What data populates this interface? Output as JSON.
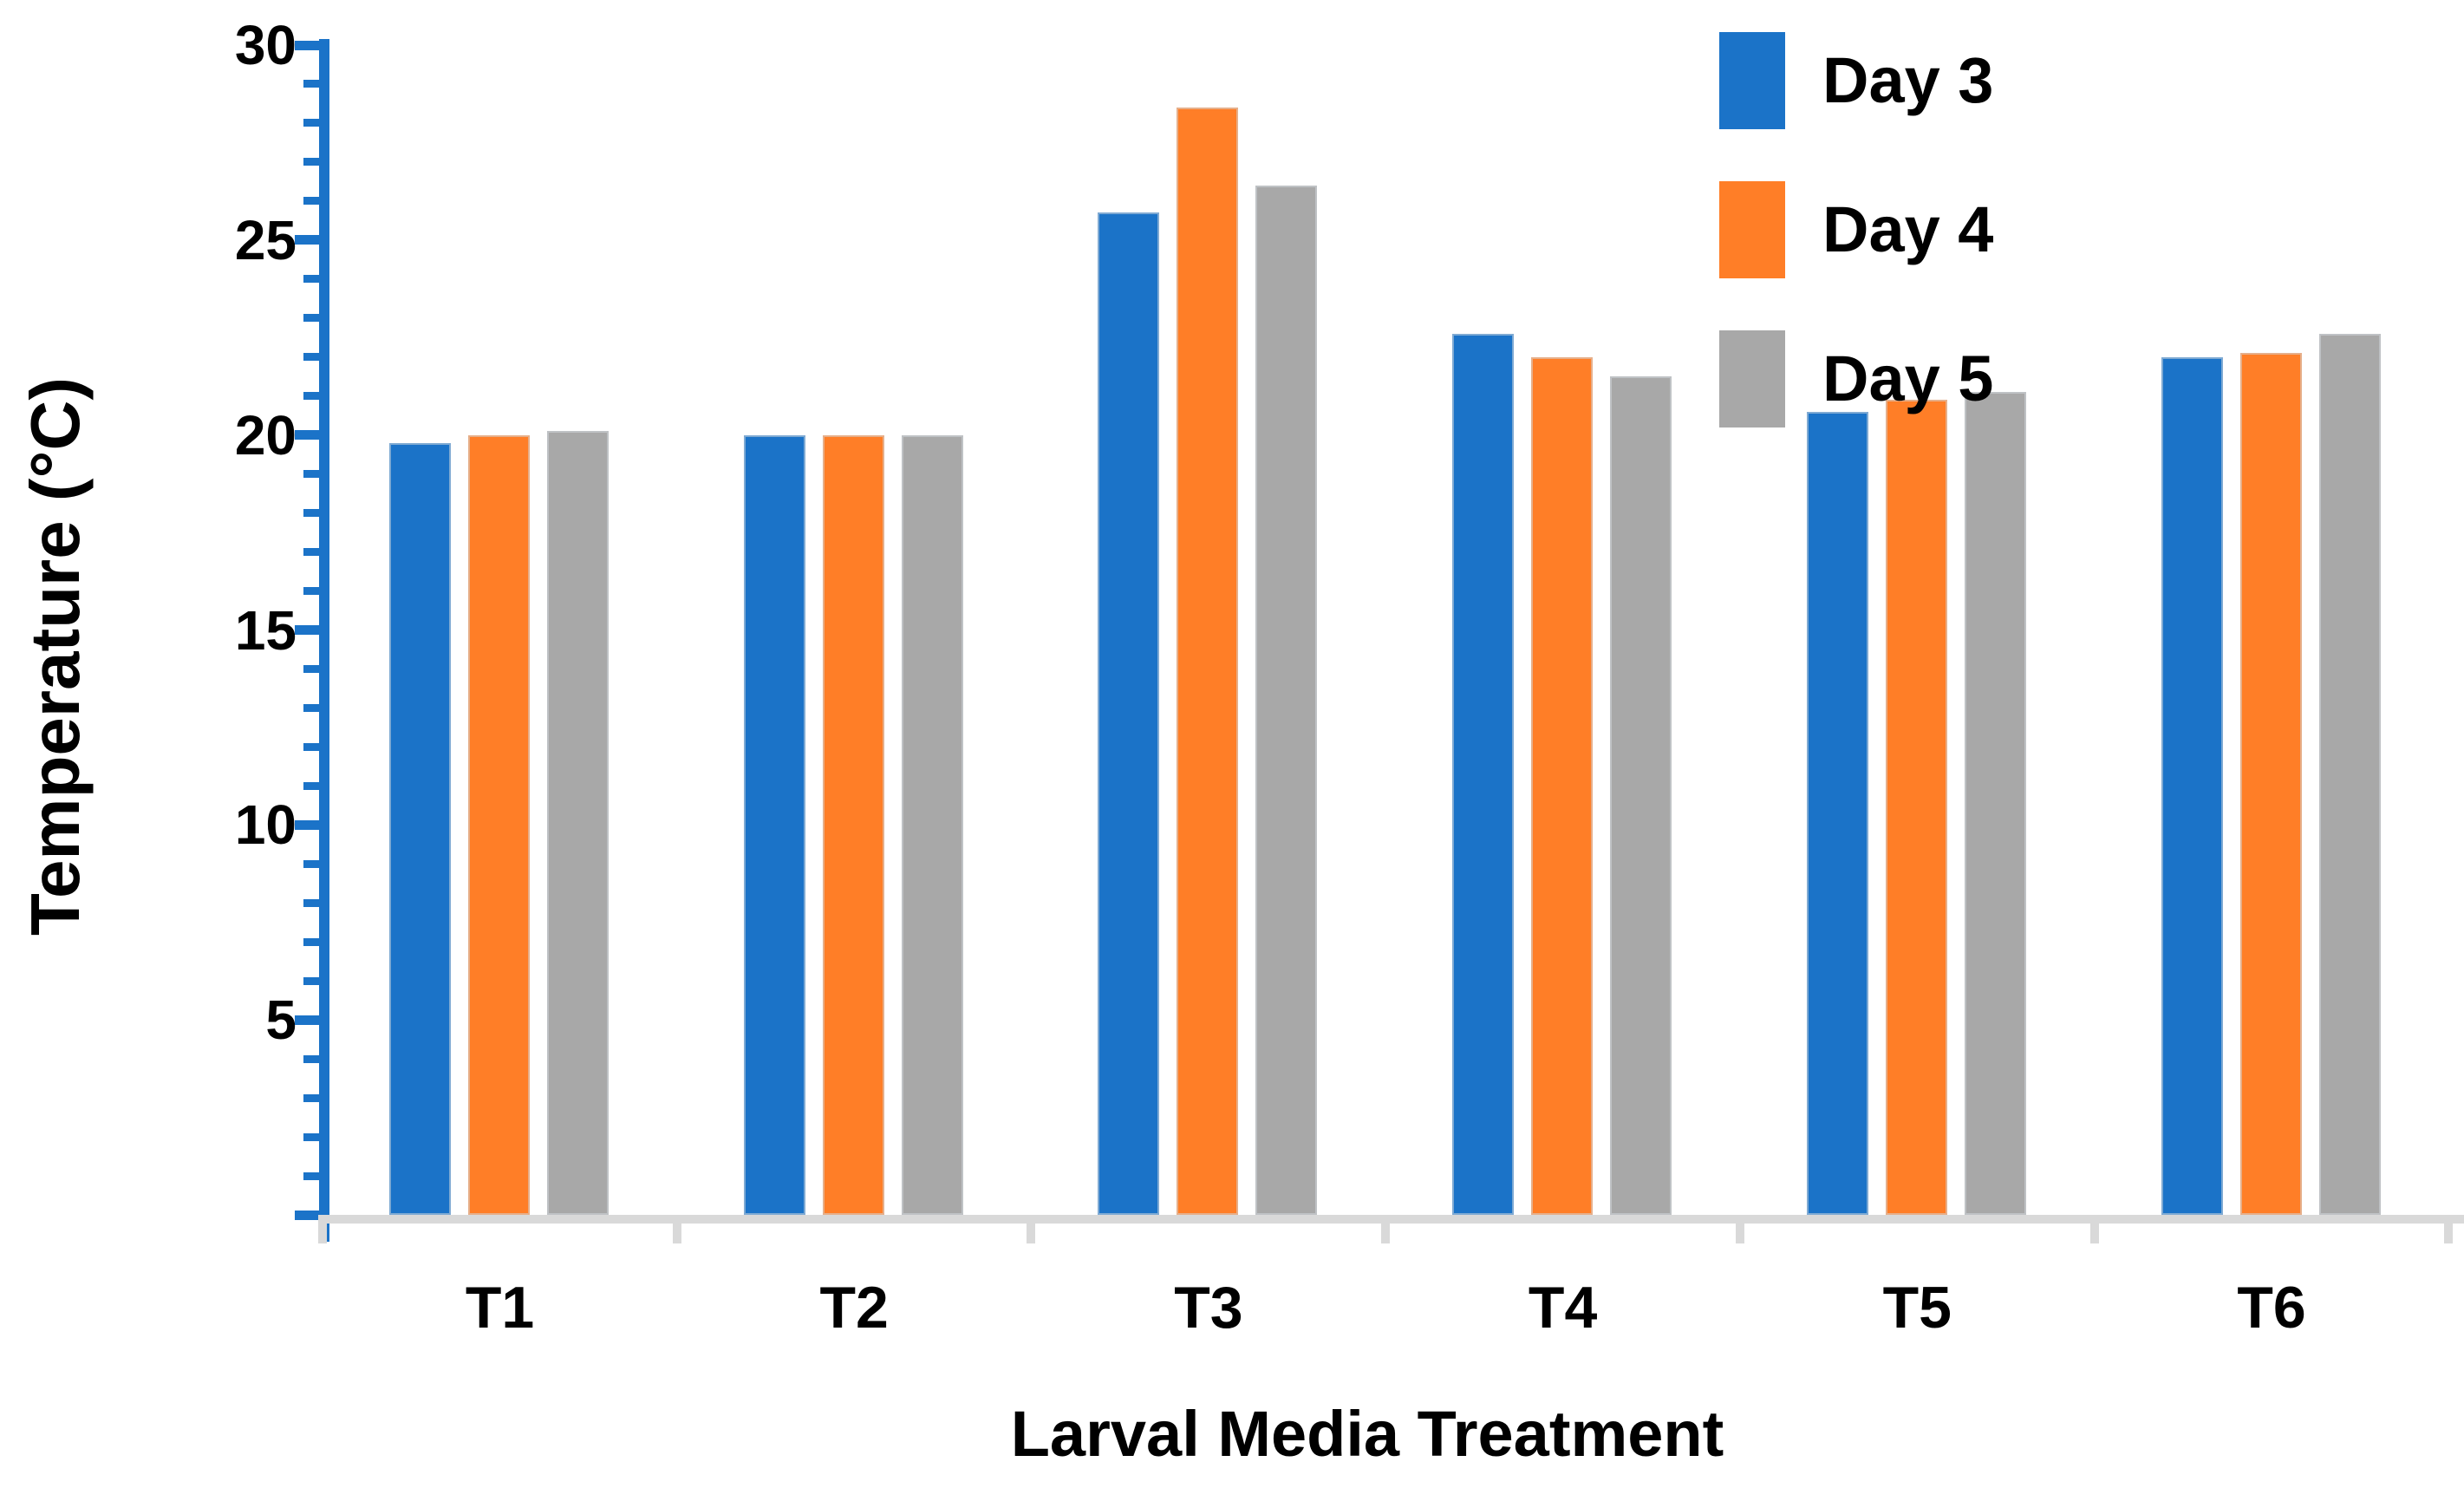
{
  "chart_data": {
    "type": "bar",
    "title": "",
    "xlabel": "Larval Media Treatment",
    "ylabel": "Temperature (°C)",
    "categories": [
      "T1",
      "T2",
      "T3",
      "T4",
      "T5",
      "T6"
    ],
    "series": [
      {
        "name": "Day 3",
        "color": "#1B73C8",
        "values": [
          19.8,
          20.0,
          25.7,
          22.6,
          20.6,
          22.0
        ]
      },
      {
        "name": "Day 4",
        "color": "#FF7E27",
        "values": [
          20.0,
          20.0,
          28.4,
          22.0,
          20.9,
          22.1
        ]
      },
      {
        "name": "Day 5",
        "color": "#A8A8A8",
        "values": [
          20.1,
          20.0,
          26.4,
          21.5,
          21.1,
          22.6
        ]
      }
    ],
    "ylim": [
      0,
      30
    ],
    "y_major_tick_labels": [
      "30",
      "25",
      "20",
      "15",
      "10",
      "5"
    ],
    "y_major_tick_values": [
      30,
      25,
      20,
      15,
      10,
      5
    ],
    "y_minor_tick_step": 1,
    "grid": false,
    "legend_position": "top-right",
    "colors": {
      "axis": "#1B73C8",
      "baseline": "#D9D9D9",
      "text": "#000000",
      "background": "#FFFFFF"
    }
  }
}
